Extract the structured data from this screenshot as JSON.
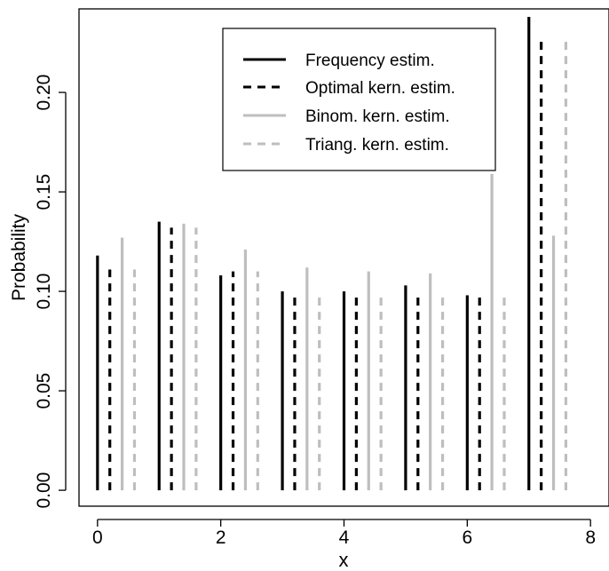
{
  "chart_data": {
    "type": "bar",
    "xlabel": "x",
    "ylabel": "Probability",
    "xlim": [
      -0.3,
      8.3
    ],
    "ylim": [
      -0.008,
      0.242
    ],
    "xticks": [
      "0",
      "2",
      "4",
      "6",
      "8"
    ],
    "yticks": [
      "0.00",
      "0.05",
      "0.10",
      "0.15",
      "0.20"
    ],
    "xtick_values": [
      0,
      2,
      4,
      6,
      8
    ],
    "ytick_values": [
      0,
      0.05,
      0.1,
      0.15,
      0.2
    ],
    "x": [
      0,
      1,
      2,
      3,
      4,
      5,
      6,
      7
    ],
    "series": [
      {
        "name": "Frequency estim.",
        "color": "#000000",
        "linestyle": "solid",
        "offset": 0,
        "values": [
          0.118,
          0.135,
          0.108,
          0.1,
          0.1,
          0.103,
          0.098,
          0.238
        ]
      },
      {
        "name": "Optimal kern. estim.",
        "color": "#000000",
        "linestyle": "dashed",
        "offset": 0.2,
        "values": [
          0.111,
          0.132,
          0.11,
          0.1,
          0.1,
          0.1,
          0.1,
          0.228
        ]
      },
      {
        "name": "Binom. kern. estim.",
        "color": "#bebebe",
        "linestyle": "solid",
        "offset": 0.4,
        "values": [
          0.127,
          0.134,
          0.121,
          0.112,
          0.11,
          0.109,
          0.159,
          0.128
        ]
      },
      {
        "name": "Triang. kern. estim.",
        "color": "#bebebe",
        "linestyle": "dashed",
        "offset": 0.6,
        "values": [
          0.111,
          0.132,
          0.11,
          0.1,
          0.1,
          0.1,
          0.1,
          0.228
        ]
      }
    ],
    "legend_position": "top-right",
    "grid": false
  }
}
